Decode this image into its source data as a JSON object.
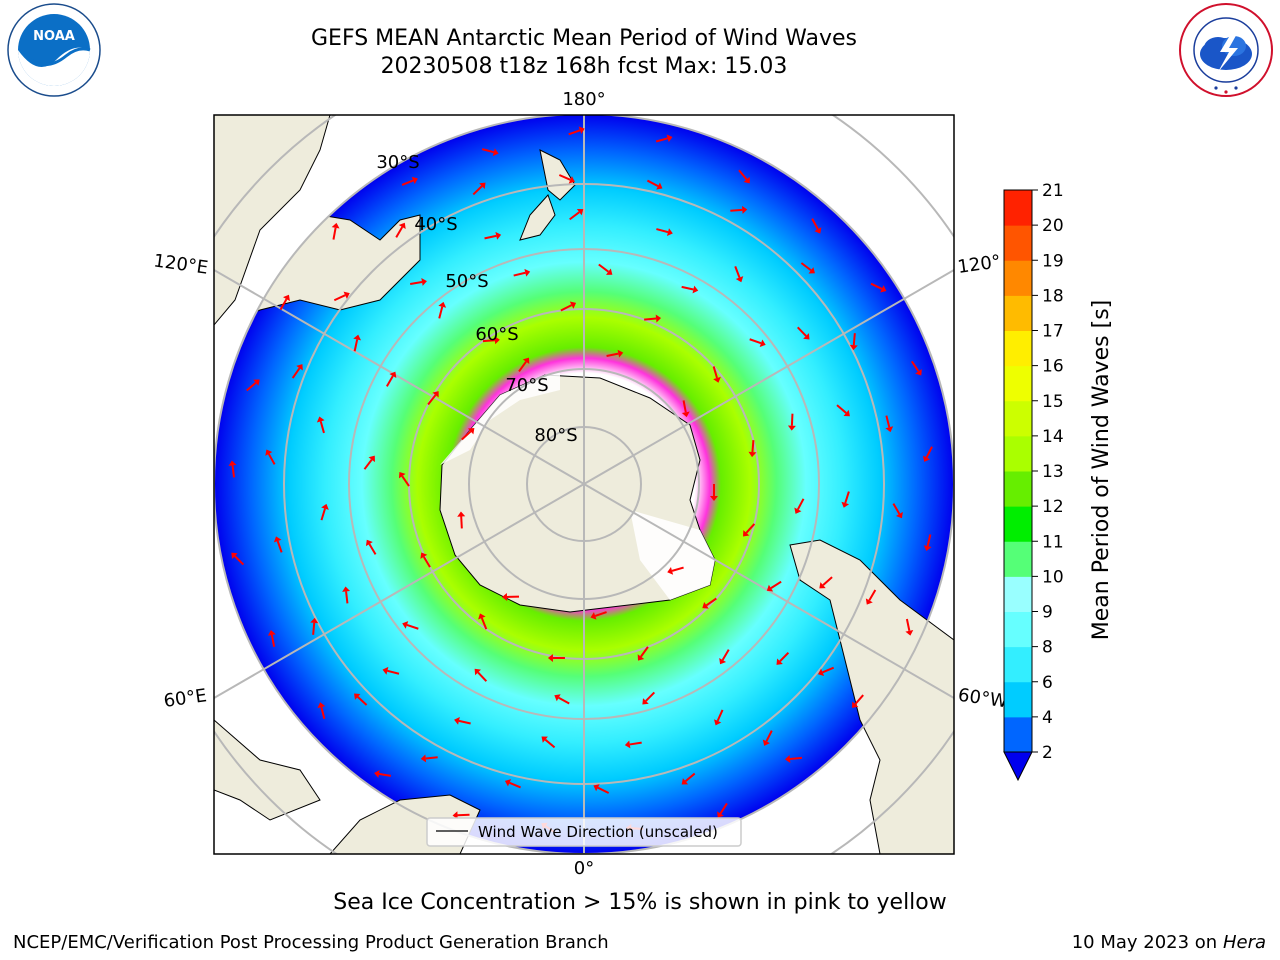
{
  "title": {
    "line1": "GEFS MEAN Antarctic Mean Period of Wind Waves",
    "line2": "20230508 t18z 168h fcst   Max: 15.03"
  },
  "logos": {
    "left": {
      "icon": "noaa-logo",
      "text": "NOAA",
      "ring_text": "NATIONAL OCEANIC AND ATMOSPHERIC ADMINISTRATION · U.S. DEPARTMENT OF COMMERCE"
    },
    "right": {
      "icon": "nws-logo",
      "ring_text": "NATIONAL WEATHER SERVICE"
    }
  },
  "map": {
    "projection": "south-polar-stereographic",
    "longitude_labels": [
      "180°",
      "120°E",
      "120°",
      "60°E",
      "60°W",
      "0°"
    ],
    "latitude_labels": [
      "30°S",
      "40°S",
      "50°S",
      "60°S",
      "70°S",
      "80°S"
    ],
    "legend_label": "Wind Wave Direction (unscaled)",
    "vector_color": "#ff0000",
    "land_color": "#eeecdc",
    "ice_edge_color": "#ff33dd"
  },
  "colorbar": {
    "label": "Mean Period of Wind Waves [s]",
    "ticks": [
      "2",
      "4",
      "6",
      "8",
      "9",
      "10",
      "11",
      "12",
      "13",
      "14",
      "15",
      "16",
      "17",
      "18",
      "19",
      "20",
      "21"
    ],
    "colors": [
      "#0066ff",
      "#00ccff",
      "#33eeff",
      "#66ffff",
      "#99ffff",
      "#55ff77",
      "#00ee00",
      "#66ee00",
      "#aaff00",
      "#ccff00",
      "#eeff00",
      "#ffee00",
      "#ffbb00",
      "#ff8800",
      "#ff5500",
      "#ff2200"
    ],
    "under_color": "#0000ee"
  },
  "footer": {
    "caption": "Sea Ice Concentration > 15% is shown in pink to yellow",
    "left": "NCEP/EMC/Verification Post Processing Product Generation Branch",
    "right_date": "10 May 2023 on",
    "right_machine": "Hera"
  }
}
